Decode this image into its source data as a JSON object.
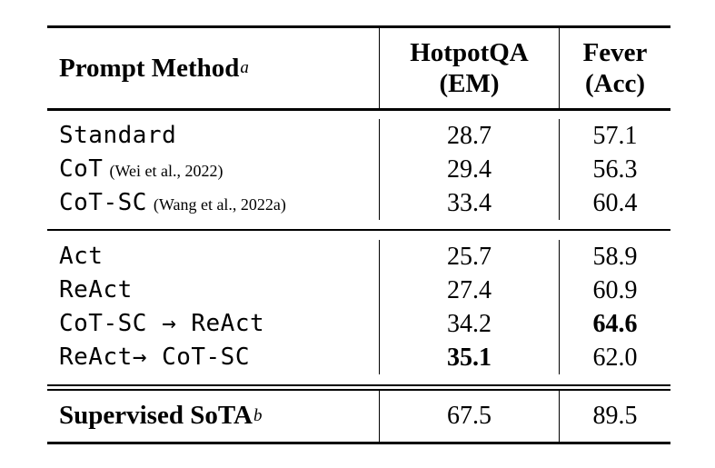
{
  "table": {
    "header": {
      "method_label": "Prompt Method",
      "method_sup": "a",
      "col2_line1": "HotpotQA",
      "col2_line2": "(EM)",
      "col3_line1": "Fever",
      "col3_line2": "(Acc)"
    },
    "sections": [
      {
        "rows": [
          {
            "method": "Standard",
            "citation": "",
            "hotpotqa": "28.7",
            "fever": "57.1"
          },
          {
            "method": "CoT",
            "citation": "(Wei et al., 2022)",
            "hotpotqa": "29.4",
            "fever": "56.3"
          },
          {
            "method": "CoT-SC",
            "citation": "(Wang et al., 2022a)",
            "hotpotqa": "33.4",
            "fever": "60.4"
          }
        ]
      },
      {
        "rows": [
          {
            "method": "Act",
            "citation": "",
            "hotpotqa": "25.7",
            "fever": "58.9"
          },
          {
            "method": "ReAct",
            "citation": "",
            "hotpotqa": "27.4",
            "fever": "60.9"
          },
          {
            "method": "CoT-SC → ReAct",
            "citation": "",
            "hotpotqa": "34.2",
            "fever": "64.6"
          },
          {
            "method": "ReAct→ CoT-SC",
            "citation": "",
            "hotpotqa": "35.1",
            "fever": "62.0"
          }
        ]
      }
    ],
    "footer": {
      "label": "Supervised SoTA",
      "sup": "b",
      "hotpotqa": "67.5",
      "fever": "89.5"
    },
    "colors": {
      "text": "#000000",
      "background": "#ffffff",
      "rule": "#000000"
    }
  }
}
